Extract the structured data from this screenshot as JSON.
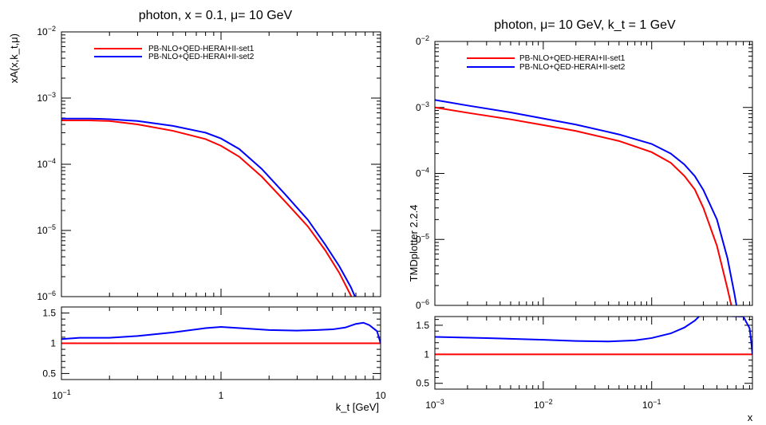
{
  "chart_data": [
    {
      "type": "line",
      "title": "photon, x = 0.1, μ= 10 GeV",
      "ylabel": "xA(x,k_t,μ)",
      "xlabel": "k_t [GeV]",
      "xscale": "log",
      "yscale": "log",
      "xlim": [
        0.1,
        10
      ],
      "ylim": [
        1e-06,
        0.01
      ],
      "grid": false,
      "legend_position": "top-left",
      "x_tick_labels": [
        "10^-1",
        "1",
        "10"
      ],
      "y_tick_labels": [
        "10^-6",
        "10^-5",
        "10^-4",
        "10^-3",
        "10^-2"
      ],
      "series": [
        {
          "name": "PB-NLO+QED-HERAI+II-set1",
          "color": "#ff0000",
          "points": [
            [
              0.1,
              0.00046
            ],
            [
              0.15,
              0.00046
            ],
            [
              0.2,
              0.00045
            ],
            [
              0.3,
              0.0004
            ],
            [
              0.5,
              0.00032
            ],
            [
              0.8,
              0.00024
            ],
            [
              1.0,
              0.00019
            ],
            [
              1.3,
              0.00013
            ],
            [
              1.8,
              6.5e-05
            ],
            [
              2.5,
              2.8e-05
            ],
            [
              3.5,
              1.15e-05
            ],
            [
              4.5,
              5e-06
            ],
            [
              5.5,
              2.3e-06
            ],
            [
              6.5,
              1.05e-06
            ],
            [
              6.8,
              8e-07
            ]
          ]
        },
        {
          "name": "PB-NLO+QED-HERAI+II-set2",
          "color": "#0000ff",
          "points": [
            [
              0.1,
              0.00049
            ],
            [
              0.15,
              0.00049
            ],
            [
              0.2,
              0.00048
            ],
            [
              0.3,
              0.00045
            ],
            [
              0.5,
              0.00038
            ],
            [
              0.8,
              0.0003
            ],
            [
              1.0,
              0.000245
            ],
            [
              1.3,
              0.00017
            ],
            [
              1.8,
              8.5e-05
            ],
            [
              2.5,
              3.6e-05
            ],
            [
              3.5,
              1.45e-05
            ],
            [
              4.5,
              6.1e-06
            ],
            [
              5.5,
              2.9e-06
            ],
            [
              6.5,
              1.4e-06
            ],
            [
              7.2,
              8e-07
            ]
          ]
        }
      ],
      "ratio_panel": {
        "ylim": [
          0.4,
          1.6
        ],
        "y_tick_labels": [
          "0.5",
          "1",
          "1.5"
        ],
        "series": [
          {
            "name": "PB-NLO+QED-HERAI+II-set1",
            "color": "#ff0000",
            "points": [
              [
                0.1,
                1.0
              ],
              [
                10,
                1.0
              ]
            ]
          },
          {
            "name": "PB-NLO+QED-HERAI+II-set2",
            "color": "#0000ff",
            "points": [
              [
                0.1,
                1.07
              ],
              [
                0.13,
                1.09
              ],
              [
                0.2,
                1.09
              ],
              [
                0.3,
                1.12
              ],
              [
                0.5,
                1.18
              ],
              [
                0.8,
                1.25
              ],
              [
                1.0,
                1.27
              ],
              [
                1.5,
                1.24
              ],
              [
                2.0,
                1.22
              ],
              [
                3.0,
                1.21
              ],
              [
                4.0,
                1.22
              ],
              [
                5.0,
                1.23
              ],
              [
                6.0,
                1.26
              ],
              [
                7.0,
                1.32
              ],
              [
                7.8,
                1.34
              ],
              [
                8.5,
                1.3
              ],
              [
                9.5,
                1.2
              ],
              [
                10,
                1.0
              ]
            ]
          }
        ]
      }
    },
    {
      "type": "line",
      "title": "photon, μ= 10 GeV, k_t = 1 GeV",
      "ylabel": "",
      "xlabel": "x",
      "side_label": "TMDplotter 2.2.4",
      "xscale": "log",
      "yscale": "log",
      "xlim": [
        0.001,
        0.85
      ],
      "ylim": [
        1e-06,
        0.01
      ],
      "grid": false,
      "legend_position": "top-left",
      "x_tick_labels": [
        "10^-3",
        "10^-2",
        "10^-1"
      ],
      "y_tick_labels": [
        "0^-6",
        "0^-5",
        "0^-4",
        "0^-3",
        "0^-2"
      ],
      "series": [
        {
          "name": "PB-NLO+QED-HERAI+II-set1",
          "color": "#ff0000",
          "points": [
            [
              0.001,
              0.001
            ],
            [
              0.002,
              0.00083
            ],
            [
              0.005,
              0.00066
            ],
            [
              0.01,
              0.00054
            ],
            [
              0.02,
              0.00044
            ],
            [
              0.05,
              0.00031
            ],
            [
              0.1,
              0.00021
            ],
            [
              0.15,
              0.000145
            ],
            [
              0.2,
              9.2e-05
            ],
            [
              0.25,
              5.7e-05
            ],
            [
              0.3,
              3e-05
            ],
            [
              0.4,
              8e-06
            ],
            [
              0.5,
              1.8e-06
            ],
            [
              0.56,
              8e-07
            ]
          ]
        },
        {
          "name": "PB-NLO+QED-HERAI+II-set2",
          "color": "#0000ff",
          "points": [
            [
              0.001,
              0.0013
            ],
            [
              0.002,
              0.00107
            ],
            [
              0.005,
              0.00084
            ],
            [
              0.01,
              0.00068
            ],
            [
              0.02,
              0.00055
            ],
            [
              0.05,
              0.00039
            ],
            [
              0.1,
              0.00028
            ],
            [
              0.15,
              0.0002
            ],
            [
              0.2,
              0.000137
            ],
            [
              0.25,
              9.1e-05
            ],
            [
              0.3,
              5.6e-05
            ],
            [
              0.4,
              2e-05
            ],
            [
              0.5,
              5.2e-06
            ],
            [
              0.58,
              1.5e-06
            ],
            [
              0.62,
              8e-07
            ]
          ]
        }
      ],
      "ratio_panel": {
        "ylim": [
          0.4,
          1.65
        ],
        "y_tick_labels": [
          "0.5",
          "1",
          "1.5"
        ],
        "series": [
          {
            "name": "PB-NLO+QED-HERAI+II-set1",
            "color": "#ff0000",
            "points": [
              [
                0.001,
                1.0
              ],
              [
                0.85,
                1.0
              ]
            ]
          },
          {
            "name": "PB-NLO+QED-HERAI+II-set2",
            "color": "#0000ff",
            "points": [
              [
                0.001,
                1.3
              ],
              [
                0.003,
                1.28
              ],
              [
                0.01,
                1.25
              ],
              [
                0.02,
                1.23
              ],
              [
                0.04,
                1.22
              ],
              [
                0.07,
                1.24
              ],
              [
                0.1,
                1.28
              ],
              [
                0.15,
                1.36
              ],
              [
                0.2,
                1.46
              ],
              [
                0.25,
                1.58
              ],
              [
                0.28,
                1.67
              ],
              [
                0.7,
                1.65
              ],
              [
                0.8,
                1.45
              ],
              [
                0.83,
                1.2
              ],
              [
                0.85,
                1.0
              ]
            ]
          }
        ]
      }
    }
  ]
}
